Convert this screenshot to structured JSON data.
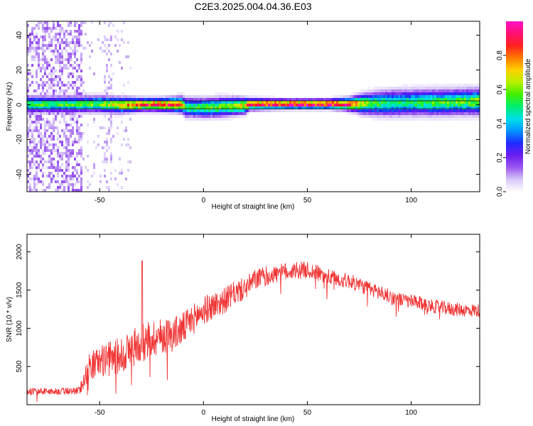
{
  "title": "C2E3.2025.004.04.36.E03",
  "chart_data": [
    {
      "type": "heatmap",
      "xlabel": "Height of straight line (km)",
      "ylabel": "Frequency (Hz)",
      "xlim": [
        -85,
        133
      ],
      "ylim": [
        -50,
        48
      ],
      "xticks": [
        -50,
        0,
        50,
        100
      ],
      "yticks": [
        -40,
        -20,
        0,
        20,
        40
      ],
      "colorbar": {
        "label": "Normalized spectral amplitude",
        "range": [
          0,
          1
        ],
        "ticks": [
          "0.0",
          "0.2",
          "0.4",
          "0.6",
          "0.8"
        ],
        "colors": [
          "#ffffff",
          "#d8c8f8",
          "#9b57f0",
          "#6a1cf0",
          "#1f2cff",
          "#0096ff",
          "#00e0e8",
          "#00ee70",
          "#40f000",
          "#b8f000",
          "#ffd000",
          "#ff7a00",
          "#ff2020",
          "#ff1070",
          "#ff10c8"
        ]
      },
      "ridge": {
        "x": [
          -60,
          -50,
          -40,
          -30,
          -20,
          -10,
          -9,
          0,
          10,
          20,
          22,
          40,
          60,
          70,
          80,
          90,
          100,
          110,
          120,
          133
        ],
        "freq": [
          0.2,
          0.3,
          -0.3,
          0.1,
          0.0,
          0.0,
          -1.5,
          -1.8,
          -1.2,
          -0.6,
          0.2,
          0.3,
          0.3,
          0.3,
          0.6,
          0.9,
          1.2,
          1.3,
          1.5,
          1.8
        ],
        "peak_amplitude": [
          0.55,
          0.6,
          0.7,
          0.85,
          0.9,
          0.8,
          0.5,
          0.55,
          0.6,
          0.7,
          0.9,
          0.95,
          0.95,
          0.9,
          0.55,
          0.5,
          0.5,
          0.55,
          0.55,
          0.6
        ],
        "halfwidth": [
          2.5,
          2.5,
          2.5,
          2.0,
          2.0,
          2.5,
          3.0,
          3.0,
          3.0,
          2.5,
          1.8,
          1.5,
          1.5,
          2.0,
          3.5,
          4.0,
          4.0,
          4.0,
          4.0,
          4.0
        ]
      },
      "noise_band": {
        "x_range": [
          -85,
          -58
        ],
        "scattered_x_range": [
          -58,
          -35
        ],
        "amplitude": 0.12
      }
    },
    {
      "type": "line",
      "xlabel": "Height of straight line (km)",
      "ylabel": "SNR (10 * v/v)",
      "xlim": [
        -85,
        133
      ],
      "ylim": [
        0,
        2230
      ],
      "xticks": [
        -50,
        0,
        50,
        100
      ],
      "yticks": [
        500,
        1000,
        1500,
        2000
      ],
      "color": "#f03535",
      "series": [
        {
          "x": [
            -85,
            -70,
            -60,
            -58,
            -55,
            -50,
            -45,
            -40,
            -35,
            -30,
            -25,
            -20,
            -15,
            -10,
            -5,
            0,
            5,
            10,
            15,
            20,
            25,
            30,
            35,
            40,
            45,
            50,
            55,
            60,
            65,
            70,
            75,
            80,
            85,
            90,
            95,
            100,
            105,
            110,
            115,
            120,
            125,
            133
          ],
          "values": [
            175,
            175,
            180,
            300,
            500,
            570,
            600,
            650,
            720,
            800,
            870,
            900,
            920,
            990,
            1120,
            1230,
            1300,
            1360,
            1460,
            1520,
            1640,
            1680,
            1710,
            1740,
            1760,
            1760,
            1720,
            1670,
            1640,
            1620,
            1570,
            1510,
            1470,
            1410,
            1370,
            1350,
            1320,
            1290,
            1270,
            1250,
            1240,
            1230
          ],
          "noise": [
            45,
            45,
            50,
            120,
            180,
            200,
            230,
            250,
            260,
            260,
            260,
            240,
            230,
            220,
            200,
            190,
            180,
            170,
            160,
            150,
            140,
            130,
            120,
            120,
            120,
            110,
            110,
            110,
            100,
            100,
            100,
            100,
            100,
            100,
            95,
            95,
            90,
            90,
            90,
            90,
            90,
            90
          ]
        }
      ],
      "spikes": [
        {
          "x": -29.5,
          "value": 1880
        }
      ]
    }
  ]
}
